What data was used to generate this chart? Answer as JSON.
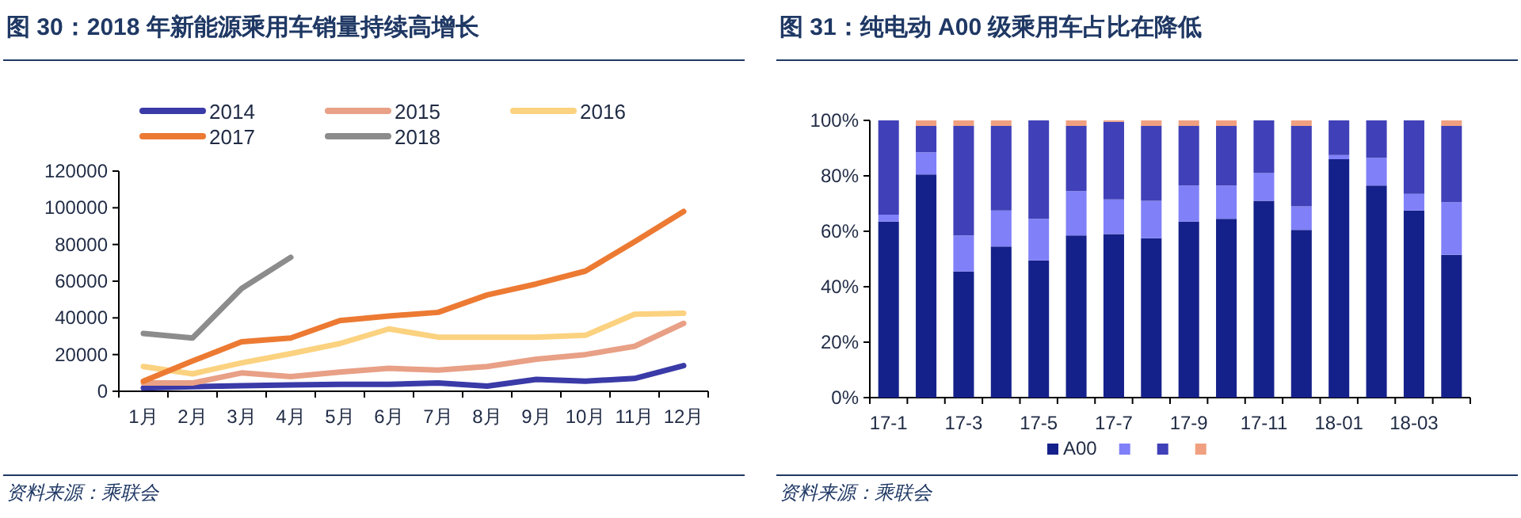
{
  "chart_data": [
    {
      "type": "line",
      "title": "图 30：2018 年新能源乘用车销量持续高增长",
      "categories": [
        "1月",
        "2月",
        "3月",
        "4月",
        "5月",
        "6月",
        "7月",
        "8月",
        "9月",
        "10月",
        "11月",
        "12月"
      ],
      "series": [
        {
          "name": "2014",
          "color": "#3a3aa8",
          "values": [
            1800,
            2500,
            3000,
            3500,
            3800,
            3800,
            4500,
            2800,
            6500,
            5500,
            7000,
            14000
          ]
        },
        {
          "name": "2015",
          "color": "#e8a086",
          "values": [
            4500,
            4500,
            10000,
            8000,
            10500,
            12500,
            11500,
            13500,
            17500,
            20000,
            24500,
            37000
          ]
        },
        {
          "name": "2016",
          "color": "#fbd280",
          "values": [
            13500,
            9500,
            15500,
            20500,
            26000,
            34000,
            29500,
            29500,
            29500,
            30500,
            42000,
            42500
          ]
        },
        {
          "name": "2017",
          "color": "#ec7a33",
          "values": [
            5500,
            16500,
            27000,
            29000,
            38500,
            41000,
            43000,
            52500,
            58500,
            65500,
            81500,
            98000
          ]
        },
        {
          "name": "2018",
          "color": "#8c8c8c",
          "values": [
            31500,
            29000,
            56000,
            73000,
            null,
            null,
            null,
            null,
            null,
            null,
            null,
            null
          ]
        }
      ],
      "ylim": [
        0,
        120000
      ],
      "yticks": [
        0,
        20000,
        40000,
        60000,
        80000,
        100000,
        120000
      ],
      "grid": false,
      "legend": "top",
      "marker": "none",
      "line_style": "solid",
      "annotations": [
        "资料来源：乘联会"
      ]
    },
    {
      "type": "bar",
      "stacked": true,
      "title": "图 31：纯电动 A00 级乘用车占比在降低",
      "categories": [
        "17-1",
        null,
        "17-3",
        null,
        "17-5",
        null,
        "17-7",
        null,
        "17-9",
        null,
        "17-11",
        null,
        "18-01",
        null,
        "18-03",
        null
      ],
      "series": [
        {
          "name": "A00",
          "color": "#15218a",
          "values": [
            63.5,
            80.5,
            45.5,
            54.5,
            49.5,
            58.5,
            59,
            57.5,
            63.5,
            64.5,
            71,
            60.5,
            86,
            76.5,
            67.5,
            51.5
          ]
        },
        {
          "color": "#8080f8",
          "values": [
            2.5,
            8,
            13,
            13,
            15,
            16,
            12.5,
            13.5,
            13,
            12,
            10,
            8.5,
            1.5,
            10,
            6,
            19
          ]
        },
        {
          "color": "#4040b8",
          "values": [
            34,
            9.5,
            39.5,
            30.5,
            35.5,
            23.5,
            28,
            27,
            21.5,
            21.5,
            19,
            29,
            12.5,
            13.5,
            26.5,
            27.5
          ]
        },
        {
          "color": "#f0a080",
          "values": [
            0,
            2,
            2,
            2,
            0,
            2,
            0.5,
            2,
            2,
            2,
            0,
            2,
            0,
            0,
            0,
            2
          ]
        }
      ],
      "ylim": [
        0,
        100
      ],
      "yticks": [
        {
          "value": 0,
          "label": "0%"
        },
        {
          "value": 20,
          "label": "20%"
        },
        {
          "value": 40,
          "label": "40%"
        },
        {
          "value": 60,
          "label": "60%"
        },
        {
          "value": 80,
          "label": "80%"
        },
        {
          "value": 100,
          "label": "100%"
        }
      ],
      "grid": false,
      "legend": "bottom",
      "annotations": [
        "资料来源：乘联会"
      ]
    }
  ]
}
